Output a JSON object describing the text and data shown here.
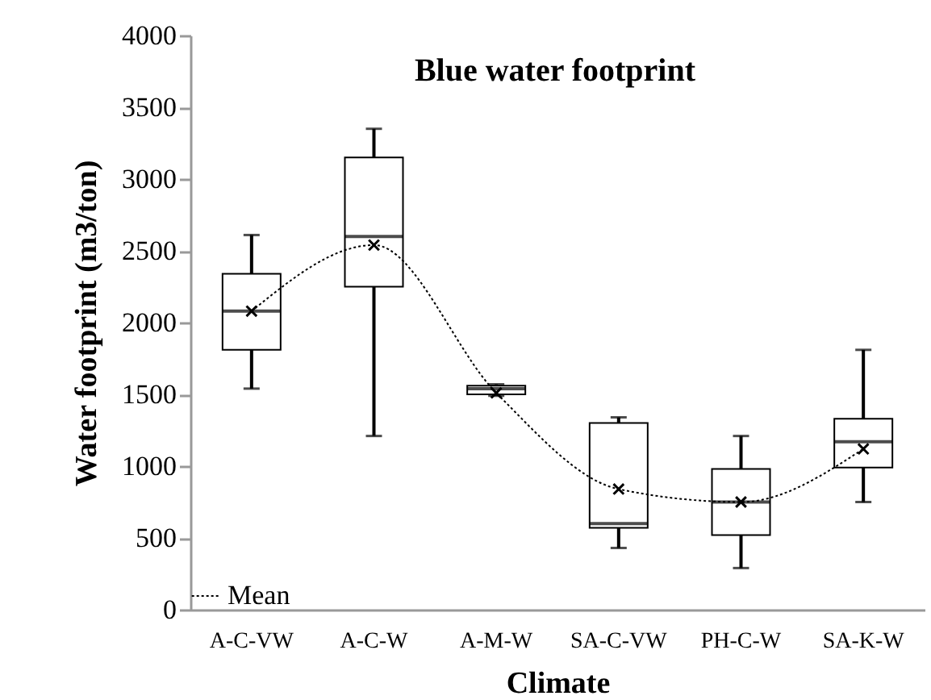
{
  "chart_data": {
    "type": "box",
    "title": "Blue water footprint",
    "xlabel": "Climate",
    "ylabel": "Water footprint (m3/ton)",
    "categories": [
      "A-C-VW",
      "A-C-W",
      "A-M-W",
      "SA-C-VW",
      "PH-C-W",
      "SA-K-W"
    ],
    "boxes": [
      {
        "low": 1540,
        "q1": 1810,
        "median": 2080,
        "q3": 2340,
        "high": 2610
      },
      {
        "low": 1210,
        "q1": 2250,
        "median": 2600,
        "q3": 3150,
        "high": 3350
      },
      {
        "low": 1490,
        "q1": 1500,
        "median": 1540,
        "q3": 1560,
        "high": 1570
      },
      {
        "low": 430,
        "q1": 570,
        "median": 600,
        "q3": 1300,
        "high": 1340
      },
      {
        "low": 290,
        "q1": 520,
        "median": 750,
        "q3": 980,
        "high": 1210
      },
      {
        "low": 750,
        "q1": 990,
        "median": 1170,
        "q3": 1330,
        "high": 1810
      }
    ],
    "series": [
      {
        "name": "Mean",
        "type": "line",
        "color": "#000000",
        "marker": "cross",
        "line_style": "dotted",
        "values": [
          2080,
          2540,
          1510,
          840,
          750,
          1120
        ]
      }
    ],
    "ylim": [
      0,
      4000
    ],
    "yticks": [
      0,
      500,
      1000,
      1500,
      2000,
      2500,
      3000,
      3500,
      4000
    ],
    "grid": false,
    "legend": "bottom left"
  }
}
